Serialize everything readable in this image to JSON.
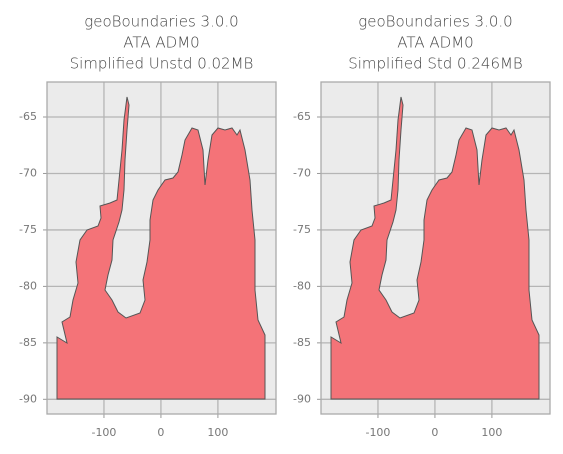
{
  "chart_data": [
    {
      "type": "map",
      "title": [
        "geoBoundaries 3.0.0",
        "ATA ADM0",
        "Simplified Unstd 0.02MB"
      ],
      "xlim": [
        -200,
        202
      ],
      "ylim": [
        -91.3,
        -61.9
      ],
      "xticks": [
        -100,
        0,
        100
      ],
      "yticks": [
        -65,
        -70,
        -75,
        -80,
        -85,
        -90
      ],
      "grid": true,
      "color": "#f47378"
    },
    {
      "type": "map",
      "title": [
        "geoBoundaries 3.0.0",
        "ATA ADM0",
        "Simplified Std 0.246MB"
      ],
      "xlim": [
        -200,
        202
      ],
      "ylim": [
        -91.3,
        -61.9
      ],
      "xticks": [
        -100,
        0,
        100
      ],
      "yticks": [
        -65,
        -70,
        -75,
        -80,
        -85,
        -90
      ],
      "grid": true,
      "color": "#f47378"
    }
  ]
}
